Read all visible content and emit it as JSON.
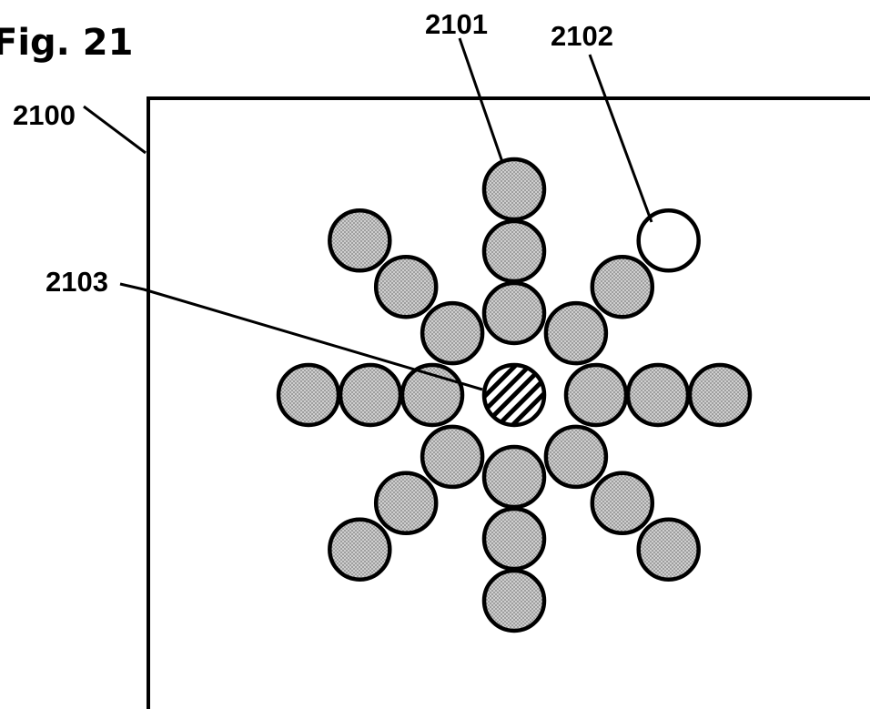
{
  "figure": {
    "title": "Fig. 21",
    "labels": {
      "frame": "2100",
      "cell": "2101",
      "empty_cell": "2102",
      "center_cell": "2103"
    }
  },
  "style": {
    "cell_fill": "#c9c9c9",
    "empty_fill": "#ffffff",
    "line_color": "#000000"
  },
  "arrangement": {
    "arms": 8,
    "cells_per_arm": 3,
    "center": "hatched",
    "empty_position": "outer end of upper-right arm"
  }
}
